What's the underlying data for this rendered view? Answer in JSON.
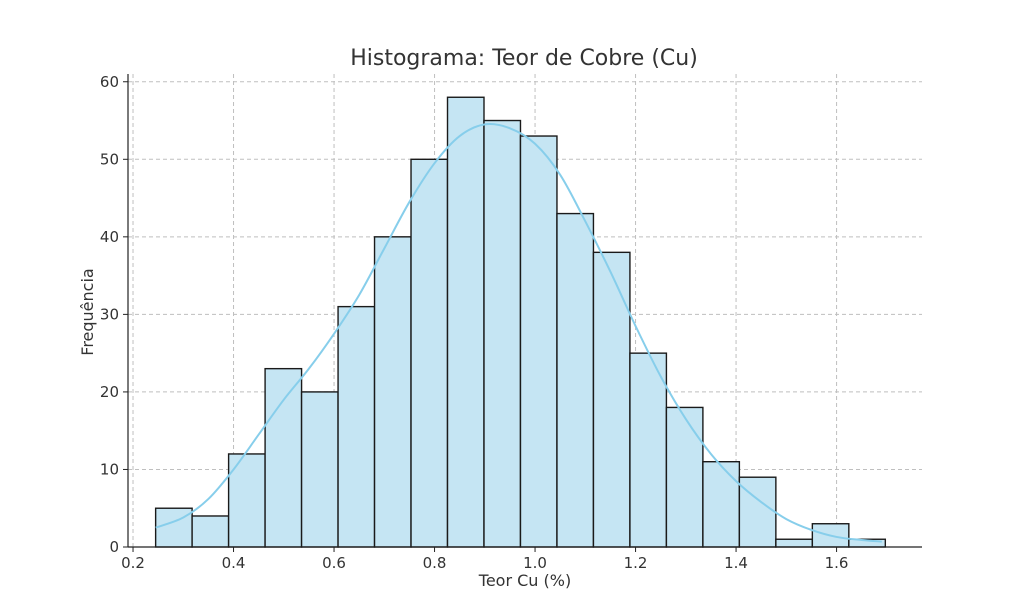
{
  "chart_data": {
    "type": "bar",
    "title": "Histograma: Teor de Cobre (Cu)",
    "xlabel": "Teor Cu (%)",
    "ylabel": "Frequência",
    "xlim": [
      0.19,
      1.77
    ],
    "ylim": [
      0,
      61
    ],
    "xticks": [
      0.2,
      0.4,
      0.6,
      0.8,
      1.0,
      1.2,
      1.4,
      1.6
    ],
    "yticks": [
      0,
      10,
      20,
      30,
      40,
      50,
      60
    ],
    "bins": {
      "start": 0.245,
      "width": 0.0726,
      "counts": [
        5,
        4,
        12,
        23,
        20,
        31,
        40,
        50,
        58,
        55,
        53,
        43,
        38,
        25,
        18,
        11,
        9,
        1,
        3,
        1
      ]
    },
    "kde": {
      "x": [
        0.245,
        0.3,
        0.35,
        0.4,
        0.45,
        0.5,
        0.55,
        0.6,
        0.65,
        0.7,
        0.75,
        0.8,
        0.85,
        0.9,
        0.95,
        1.0,
        1.05,
        1.1,
        1.15,
        1.2,
        1.25,
        1.3,
        1.35,
        1.4,
        1.45,
        1.5,
        1.55,
        1.6,
        1.65,
        1.69
      ],
      "y": [
        2.5,
        3.8,
        6.2,
        10.0,
        14.5,
        19.0,
        23.0,
        27.5,
        32.5,
        38.5,
        44.5,
        49.5,
        53.0,
        54.5,
        54.0,
        52.0,
        48.0,
        42.0,
        35.5,
        28.5,
        22.0,
        16.5,
        12.0,
        8.5,
        5.8,
        3.6,
        2.2,
        1.3,
        0.9,
        0.7
      ]
    },
    "grid": true,
    "colors": {
      "bar_fill": "#c5e5f3",
      "bar_edge": "#1a1a1a",
      "kde": "#87ceeb"
    }
  }
}
